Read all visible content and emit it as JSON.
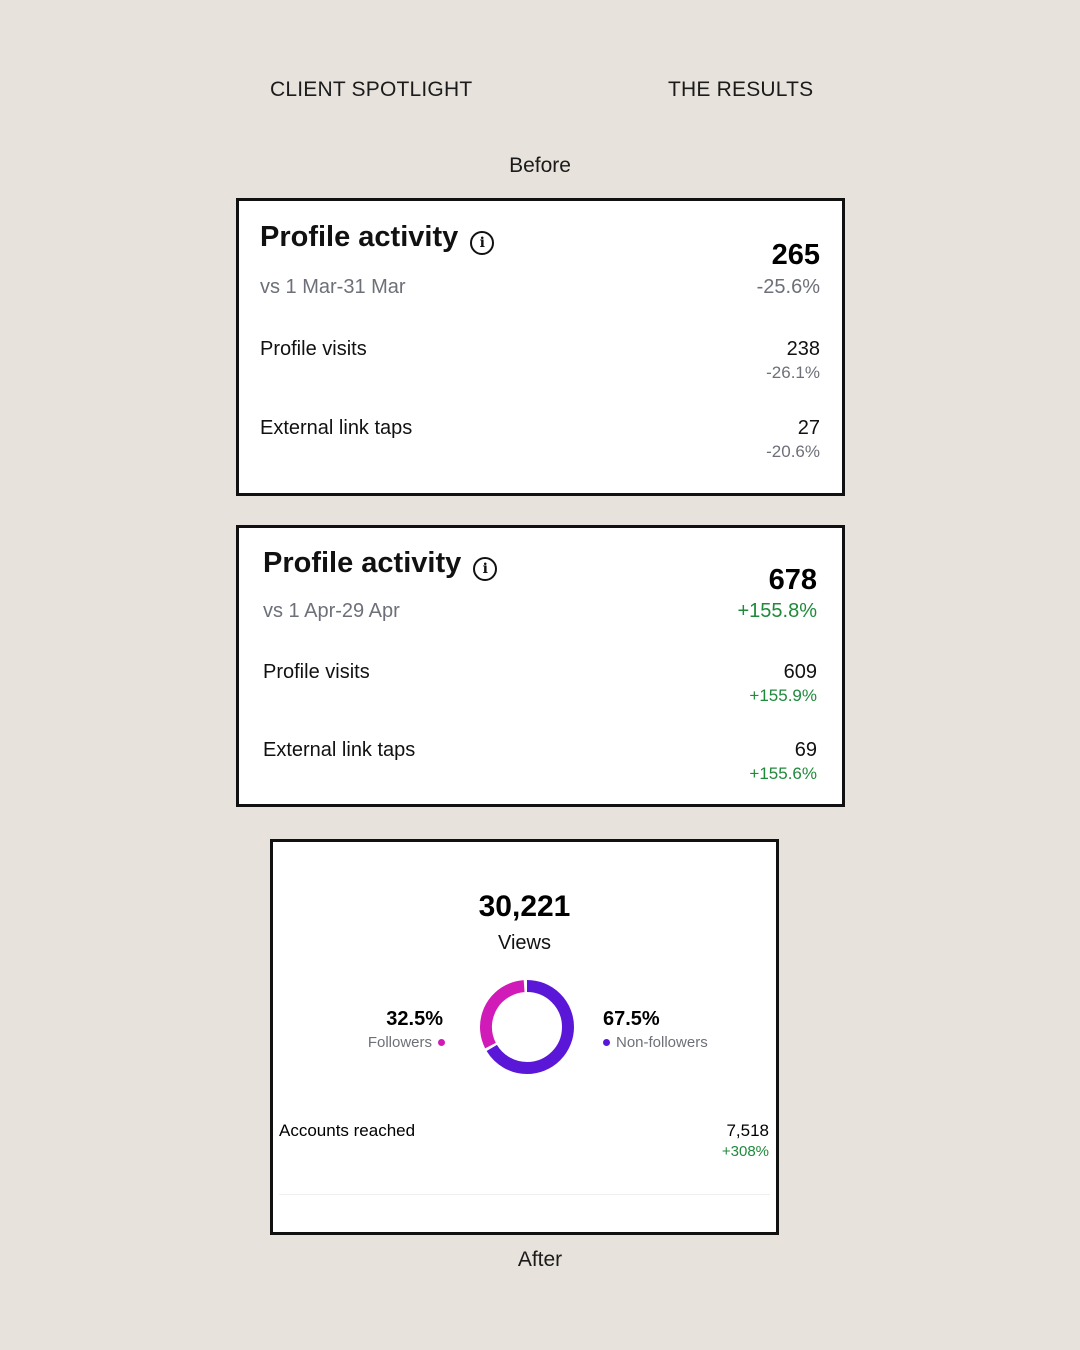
{
  "header": {
    "left": "CLIENT SPOTLIGHT",
    "right": "THE RESULTS"
  },
  "captions": {
    "before": "Before",
    "after": "After"
  },
  "card_before": {
    "title": "Profile activity",
    "subtitle": "vs 1 Mar-31 Mar",
    "total": "265",
    "total_change": "-25.6%",
    "rows": [
      {
        "label": "Profile visits",
        "value": "238",
        "change": "-26.1%"
      },
      {
        "label": "External link taps",
        "value": "27",
        "change": "-20.6%"
      }
    ]
  },
  "card_after": {
    "title": "Profile activity",
    "subtitle": "vs 1 Apr-29 Apr",
    "total": "678",
    "total_change": "+155.8%",
    "rows": [
      {
        "label": "Profile visits",
        "value": "609",
        "change": "+155.9%"
      },
      {
        "label": "External link taps",
        "value": "69",
        "change": "+155.6%"
      }
    ]
  },
  "views_card": {
    "total": "30,221",
    "label": "Views",
    "followers_pct": "32.5%",
    "followers_label": "Followers",
    "non_followers_pct": "67.5%",
    "non_followers_label": "Non-followers",
    "followers_fraction": 0.325,
    "accounts_label": "Accounts reached",
    "accounts_value": "7,518",
    "accounts_change": "+308%"
  },
  "icons": {
    "info": "info-icon"
  },
  "colors": {
    "background": "#e7e3dc",
    "positive": "#1f8a3b",
    "neutral": "#6d7078",
    "followers": "#d11bb8",
    "non_followers": "#5b17d8"
  }
}
